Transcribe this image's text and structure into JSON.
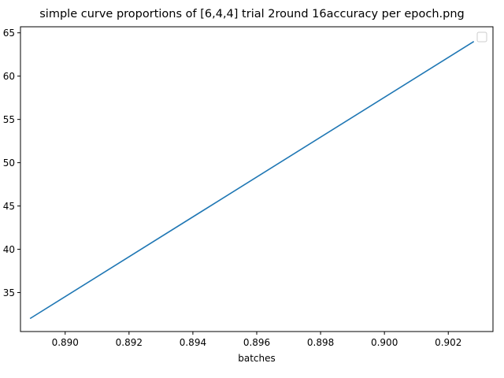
{
  "chart_data": {
    "type": "line",
    "title": "simple curve proportions of [6,4,4] trial 2round 16accuracy per epoch.png",
    "xlabel": "batches",
    "ylabel": "",
    "xlim": [
      0.8886,
      0.9034
    ],
    "ylim": [
      30.5,
      65.7
    ],
    "xticks": [
      0.89,
      0.892,
      0.894,
      0.896,
      0.898,
      0.9,
      0.902
    ],
    "xtick_labels": [
      "0.890",
      "0.892",
      "0.894",
      "0.896",
      "0.898",
      "0.900",
      "0.902"
    ],
    "yticks": [
      35,
      40,
      45,
      50,
      55,
      60,
      65
    ],
    "ytick_labels": [
      "35",
      "40",
      "45",
      "50",
      "55",
      "60",
      "65"
    ],
    "grid": false,
    "legend": {
      "placement": "upper right",
      "entries": []
    },
    "series": [
      {
        "x": [
          0.8889,
          0.9028
        ],
        "y": [
          32,
          64
        ],
        "color": "#1f77b4"
      }
    ]
  }
}
